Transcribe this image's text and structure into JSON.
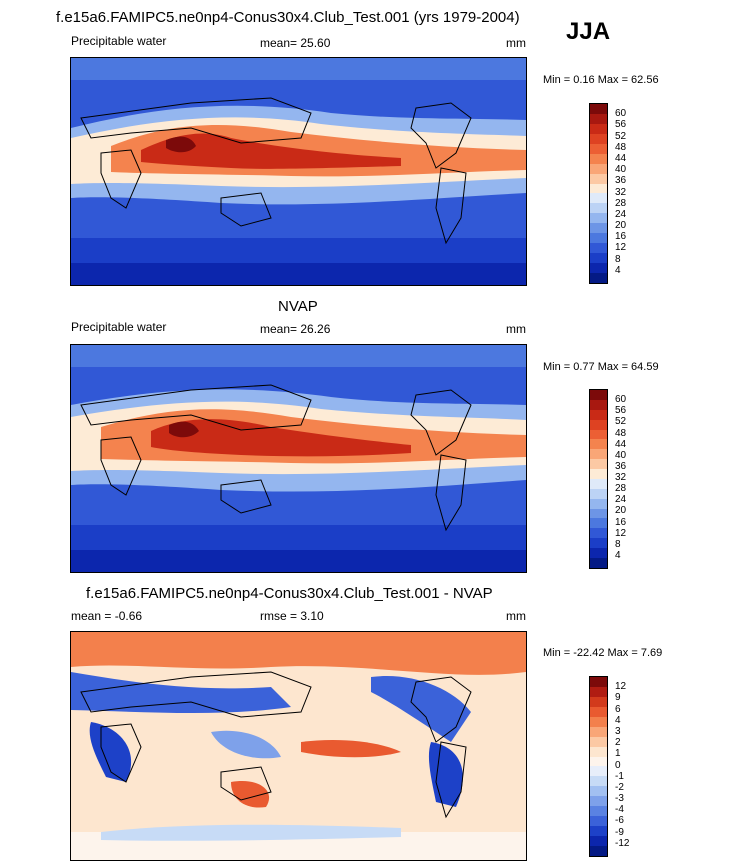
{
  "header": {
    "main_title": "f.e15a6.FAMIPC5.ne0np4-Conus30x4.Club_Test.001 (yrs 1979-2004)",
    "season": "JJA"
  },
  "panels": [
    {
      "id": "model",
      "title": "",
      "left_label": "Precipitable water",
      "center_label": "mean=  25.60",
      "units": "mm",
      "minmax": "Min =   0.16 Max =  62.56",
      "colorbar": {
        "colors": [
          "#7c0a0a",
          "#a81810",
          "#c92a16",
          "#de4222",
          "#ec5f34",
          "#f4834e",
          "#f9a677",
          "#fcc9a4",
          "#fdebd6",
          "#dfeaf9",
          "#bcd3f5",
          "#94b6ef",
          "#6d95e6",
          "#4c78df",
          "#3158d6",
          "#1b3ec7",
          "#0c26ad",
          "#041a85"
        ],
        "ticks": [
          "60",
          "56",
          "52",
          "48",
          "44",
          "40",
          "36",
          "32",
          "28",
          "24",
          "20",
          "16",
          "12",
          "8",
          "4"
        ]
      }
    },
    {
      "id": "obs",
      "title": "NVAP",
      "left_label": "Precipitable water",
      "center_label": "mean=  26.26",
      "units": "mm",
      "minmax": "Min =   0.77 Max =  64.59",
      "colorbar": {
        "colors": [
          "#7c0a0a",
          "#a81810",
          "#c92a16",
          "#de4222",
          "#ec5f34",
          "#f4834e",
          "#f9a677",
          "#fcc9a4",
          "#fdebd6",
          "#dfeaf9",
          "#bcd3f5",
          "#94b6ef",
          "#6d95e6",
          "#4c78df",
          "#3158d6",
          "#1b3ec7",
          "#0c26ad",
          "#041a85"
        ],
        "ticks": [
          "60",
          "56",
          "52",
          "48",
          "44",
          "40",
          "36",
          "32",
          "28",
          "24",
          "20",
          "16",
          "12",
          "8",
          "4"
        ]
      }
    },
    {
      "id": "diff",
      "title": "f.e15a6.FAMIPC5.ne0np4-Conus30x4.Club_Test.001 - NVAP",
      "left_label": "mean =  -0.66",
      "center_label": "rmse =   3.10",
      "units": "mm",
      "minmax": "Min = -22.42 Max =   7.69",
      "colorbar": {
        "colors": [
          "#7c0a0a",
          "#b01c12",
          "#d23a1c",
          "#e95a30",
          "#f3804c",
          "#f9a677",
          "#fcc9a4",
          "#fde6cf",
          "#fdf4ec",
          "#e7eefa",
          "#c7dbf6",
          "#a2c0f1",
          "#7ea1ea",
          "#5a82e2",
          "#3b62d9",
          "#1d41c8",
          "#0c26ad",
          "#041a85"
        ],
        "ticks": [
          "12",
          "9",
          "6",
          "4",
          "3",
          "2",
          "1",
          "0",
          "-1",
          "-2",
          "-3",
          "-4",
          "-6",
          "-9",
          "-12"
        ]
      }
    }
  ],
  "map_colors": {
    "deep_blue": "#0c26ad",
    "blue": "#3158d6",
    "light_blue": "#94b6ef",
    "pale": "#fdebd6",
    "orange": "#f4834e",
    "red": "#c92a16",
    "dark_red": "#7c0a0a",
    "diff_red": "#e95a30",
    "diff_pale": "#fde6cf",
    "diff_blue": "#3b62d9"
  }
}
